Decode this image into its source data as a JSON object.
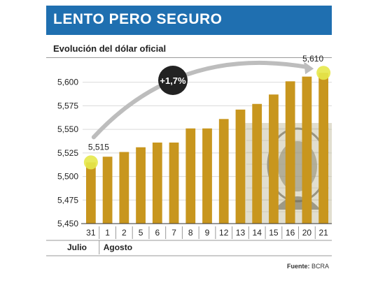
{
  "header": {
    "title": "LENTO PERO SEGURO"
  },
  "subtitle": "Evolución del dólar oficial",
  "annotation": {
    "change_label": "+1,7%",
    "start_label": "5,515",
    "end_label": "5,610"
  },
  "source": {
    "prefix": "Fuente:",
    "name": "BCRA"
  },
  "colors": {
    "header": "#1f6fb0",
    "bar": "#c8961e",
    "marker": "#e6e84a",
    "badge": "#222222",
    "arc": "#bdbdbd"
  },
  "chart_data": {
    "type": "bar",
    "title": "",
    "xlabel": "",
    "ylabel": "",
    "categories": [
      "31",
      "1",
      "2",
      "5",
      "6",
      "7",
      "8",
      "9",
      "12",
      "13",
      "14",
      "15",
      "16",
      "20",
      "21"
    ],
    "month_groups": [
      {
        "label": "Julio",
        "start_index": 0,
        "end_index": 0
      },
      {
        "label": "Agosto",
        "start_index": 1,
        "end_index": 14
      }
    ],
    "values": [
      5.515,
      5.521,
      5.526,
      5.531,
      5.536,
      5.536,
      5.551,
      5.551,
      5.561,
      5.571,
      5.577,
      5.587,
      5.601,
      5.606,
      5.61
    ],
    "ylim": [
      5.45,
      5.625
    ],
    "yticks": [
      5.45,
      5.475,
      5.5,
      5.525,
      5.55,
      5.575,
      5.6
    ],
    "ytick_labels": [
      "5,450",
      "5,475",
      "5,500",
      "5,525",
      "5,550",
      "5,575",
      "5,600"
    ],
    "grid": true,
    "legend": "none"
  }
}
